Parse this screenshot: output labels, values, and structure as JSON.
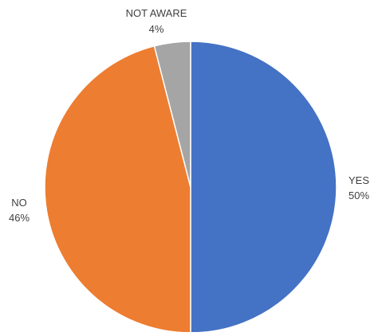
{
  "chart_data": {
    "type": "pie",
    "slices": [
      {
        "label": "YES",
        "value": 50,
        "value_label": "50%",
        "color": "#4472C4"
      },
      {
        "label": "NO",
        "value": 46,
        "value_label": "46%",
        "color": "#ED7D31"
      },
      {
        "label": "NOT AWARE",
        "value": 4,
        "value_label": "4%",
        "color": "#A5A5A5"
      }
    ],
    "start_angle_deg": 0,
    "direction": "clockwise",
    "legend": "none",
    "data_labels": "outside"
  }
}
